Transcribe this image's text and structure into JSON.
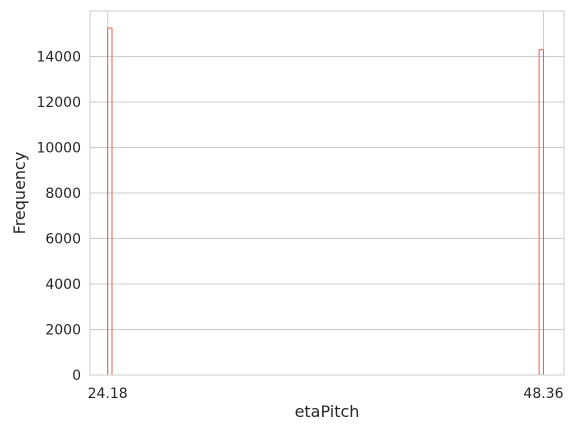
{
  "chart_data": {
    "type": "bar",
    "title": "",
    "xlabel": "etaPitch",
    "ylabel": "Frequency",
    "xlim": [
      23.2,
      49.5
    ],
    "ylim": [
      0,
      16000
    ],
    "x_ticks": [
      {
        "value": 24.18,
        "label": "24.18"
      },
      {
        "value": 48.36,
        "label": "48.36"
      }
    ],
    "y_ticks": [
      {
        "value": 0,
        "label": "0"
      },
      {
        "value": 2000,
        "label": "2000"
      },
      {
        "value": 4000,
        "label": "4000"
      },
      {
        "value": 6000,
        "label": "6000"
      },
      {
        "value": 8000,
        "label": "8000"
      },
      {
        "value": 10000,
        "label": "10000"
      },
      {
        "value": 12000,
        "label": "12000"
      },
      {
        "value": 14000,
        "label": "14000"
      }
    ],
    "bins": [
      {
        "x0": 24.18,
        "x1": 24.42,
        "count": 15250
      },
      {
        "x0": 48.12,
        "x1": 48.36,
        "count": 14300
      }
    ],
    "grid": true,
    "colors": {
      "bar_edge": "#e8604c",
      "grid": "#cccccc",
      "spine": "#cccccc",
      "text": "#262626"
    }
  }
}
